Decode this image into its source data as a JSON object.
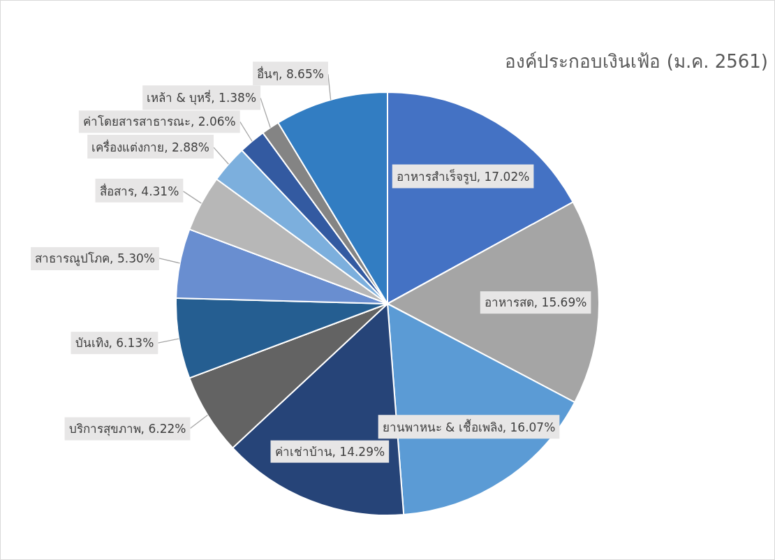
{
  "chart_data": {
    "type": "pie",
    "title": "องค์ประกอบเงินเฟ้อ (ม.ค. 2561)",
    "categories": [
      "อาหารสำเร็จรูป",
      "อาหารสด",
      "ยานพาหนะ & เชื้อเพลิง",
      "ค่าเช่าบ้าน",
      "บริการสุขภาพ",
      "บันเทิง",
      "สาธารณูปโภค",
      "สื่อสาร",
      "เครื่องแต่งกาย",
      "ค่าโดยสารสาธารณะ",
      "เหล้า & บุหรี่",
      "อื่นๆ"
    ],
    "values": [
      17.02,
      15.69,
      16.07,
      14.29,
      6.22,
      6.13,
      5.3,
      4.31,
      2.88,
      2.06,
      1.38,
      8.65
    ],
    "value_labels": [
      "17.02%",
      "15.69%",
      "16.07%",
      "14.29%",
      "6.22%",
      "6.13%",
      "5.30%",
      "4.31%",
      "2.88%",
      "2.06%",
      "1.38%",
      "8.65%"
    ],
    "colors": [
      "#4472c4",
      "#a5a5a5",
      "#5b9bd5",
      "#264478",
      "#636363",
      "#255e91",
      "#698ed0",
      "#b7b7b7",
      "#7cafdd",
      "#335aa1",
      "#848484",
      "#327dc2"
    ]
  }
}
